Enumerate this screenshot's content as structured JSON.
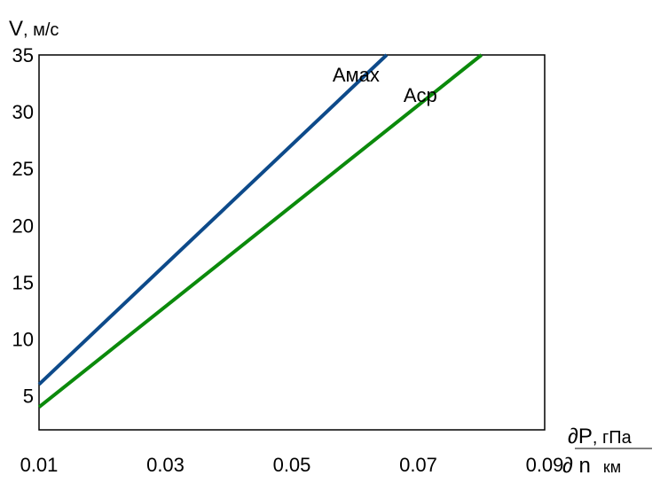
{
  "chart_data": {
    "type": "line",
    "title": "",
    "ylabel_main": "V",
    "ylabel_unit": ", м/с",
    "xlabel_num": "∂P",
    "xlabel_num_unit": ", гПа",
    "xlabel_den": "∂ n",
    "xlabel_den_unit": "км",
    "xlim": [
      0.01,
      0.09
    ],
    "ylim": [
      2,
      35
    ],
    "x_ticks": [
      "0.01",
      "0.03",
      "0.05",
      "0.07",
      "0.09"
    ],
    "y_ticks": [
      "5",
      "10",
      "15",
      "20",
      "25",
      "30",
      "35"
    ],
    "grid": false,
    "series": [
      {
        "name": "Амах",
        "color": "#0d4a8a",
        "x": [
          0.01,
          0.065
        ],
        "y": [
          6,
          35
        ]
      },
      {
        "name": "Аср",
        "color": "#0b8a0b",
        "x": [
          0.01,
          0.08
        ],
        "y": [
          4,
          35
        ]
      }
    ]
  }
}
